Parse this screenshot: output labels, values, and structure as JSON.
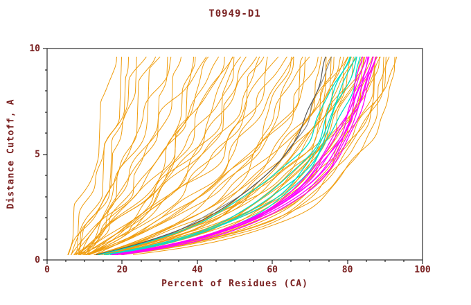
{
  "title": "T0949-D1",
  "axes": {
    "xlabel": "Percent of Residues (CA)",
    "ylabel": "Distance Cutoff, A",
    "xlim": [
      0,
      100
    ],
    "ylim": [
      0,
      10
    ],
    "x_ticks": [
      0,
      20,
      40,
      60,
      80,
      100
    ],
    "y_ticks": [
      0,
      5,
      10
    ],
    "x_minor_step": 5,
    "y_minor_step": 1
  },
  "colors": {
    "background": "#ffffff",
    "frame": "#000000",
    "text": "#7a2121",
    "orange": "#f09d0d",
    "cyan": "#00dfc8",
    "magenta": "#ff00ff",
    "gray": "#8a8a8a",
    "dark_gray": "#555555"
  },
  "chart_data": {
    "type": "line",
    "title": "T0949-D1",
    "xlabel": "Percent of Residues (CA)",
    "ylabel": "Distance Cutoff, A",
    "xlim": [
      0,
      100
    ],
    "ylim": [
      0,
      10
    ],
    "grid": false,
    "legend": "none",
    "description": "CASP-style accuracy plot: each curve shows, for one predicted model, the percent of CA residues (x) fitting under a given distance cutoff in Angstroms (y). Orange = predicted models, magenta/cyan = highlighted best models, gray = reference traces. All curves start near x=5-15 at cutoff ~0.25 and rise monotonically; top ends span ~17% to ~93%.",
    "curve_model": "x(y) = x0 + (xt - x0) * ((y/(y+k)) / (9.6/(9.6+k))) for y in [0.25, 9.6], plus smooth sinusoidal jitter of amplitude a (seed s), monotonically clamped. xt = percent reached at top of plot; k = shape (small k = fast early rise).",
    "groups": [
      {
        "name": "predicted-models-orange",
        "hex": "#f09d0d",
        "width": 1,
        "curves": [
          {
            "x0": 5,
            "xt": 17,
            "k": 30,
            "a": 2.4,
            "s": 1
          },
          {
            "x0": 7,
            "xt": 20,
            "k": 26,
            "a": 2.6,
            "s": 2
          },
          {
            "x0": 6,
            "xt": 22,
            "k": 24,
            "a": 2.8,
            "s": 3
          },
          {
            "x0": 8,
            "xt": 24,
            "k": 22,
            "a": 2.4,
            "s": 4
          },
          {
            "x0": 5,
            "xt": 26,
            "k": 20,
            "a": 3.0,
            "s": 5
          },
          {
            "x0": 7,
            "xt": 28,
            "k": 18,
            "a": 2.6,
            "s": 6
          },
          {
            "x0": 9,
            "xt": 30,
            "k": 17,
            "a": 2.8,
            "s": 7
          },
          {
            "x0": 6,
            "xt": 32,
            "k": 16,
            "a": 2.5,
            "s": 8
          },
          {
            "x0": 8,
            "xt": 34,
            "k": 15,
            "a": 3.0,
            "s": 9
          },
          {
            "x0": 7,
            "xt": 36,
            "k": 14,
            "a": 2.7,
            "s": 10
          },
          {
            "x0": 5,
            "xt": 38,
            "k": 13,
            "a": 3.1,
            "s": 11
          },
          {
            "x0": 9,
            "xt": 40,
            "k": 12,
            "a": 2.6,
            "s": 12
          },
          {
            "x0": 6,
            "xt": 42,
            "k": 11,
            "a": 3.0,
            "s": 13
          },
          {
            "x0": 8,
            "xt": 44,
            "k": 10,
            "a": 2.8,
            "s": 14
          },
          {
            "x0": 7,
            "xt": 46,
            "k": 9.5,
            "a": 3.2,
            "s": 15
          },
          {
            "x0": 5,
            "xt": 48,
            "k": 9,
            "a": 2.6,
            "s": 16
          },
          {
            "x0": 9,
            "xt": 50,
            "k": 8.5,
            "a": 3.0,
            "s": 17
          },
          {
            "x0": 7,
            "xt": 52,
            "k": 8,
            "a": 2.8,
            "s": 18
          },
          {
            "x0": 6,
            "xt": 54,
            "k": 7.5,
            "a": 3.0,
            "s": 19
          },
          {
            "x0": 8,
            "xt": 56,
            "k": 7,
            "a": 2.6,
            "s": 20
          },
          {
            "x0": 7,
            "xt": 58,
            "k": 6.5,
            "a": 3.2,
            "s": 21
          },
          {
            "x0": 5,
            "xt": 60,
            "k": 6,
            "a": 2.8,
            "s": 22
          },
          {
            "x0": 9,
            "xt": 62,
            "k": 5.5,
            "a": 2.6,
            "s": 23
          },
          {
            "x0": 7,
            "xt": 64,
            "k": 5,
            "a": 3.0,
            "s": 24
          },
          {
            "x0": 6,
            "xt": 66,
            "k": 4.5,
            "a": 2.8,
            "s": 25
          },
          {
            "x0": 5,
            "xt": 68,
            "k": 4.2,
            "a": 2.5,
            "s": 26
          },
          {
            "x0": 8,
            "xt": 70,
            "k": 3.8,
            "a": 2.6,
            "s": 27
          },
          {
            "x0": 7,
            "xt": 72,
            "k": 3.5,
            "a": 2.4,
            "s": 28
          },
          {
            "x0": 6,
            "xt": 74,
            "k": 3.2,
            "a": 2.6,
            "s": 29
          },
          {
            "x0": 9,
            "xt": 75,
            "k": 3.0,
            "a": 2.2,
            "s": 30
          },
          {
            "x0": 7,
            "xt": 76,
            "k": 2.9,
            "a": 2.5,
            "s": 31
          },
          {
            "x0": 6,
            "xt": 77,
            "k": 2.8,
            "a": 2.3,
            "s": 32
          },
          {
            "x0": 8,
            "xt": 78,
            "k": 2.7,
            "a": 2.4,
            "s": 33
          },
          {
            "x0": 7,
            "xt": 79,
            "k": 2.6,
            "a": 2.2,
            "s": 34
          },
          {
            "x0": 6,
            "xt": 80,
            "k": 2.5,
            "a": 2.4,
            "s": 35
          },
          {
            "x0": 9,
            "xt": 81,
            "k": 2.4,
            "a": 2.2,
            "s": 36
          },
          {
            "x0": 7,
            "xt": 82,
            "k": 2.3,
            "a": 2.0,
            "s": 37
          },
          {
            "x0": 6,
            "xt": 83,
            "k": 2.2,
            "a": 2.2,
            "s": 38
          },
          {
            "x0": 8,
            "xt": 84,
            "k": 2.1,
            "a": 2.0,
            "s": 39
          },
          {
            "x0": 7,
            "xt": 85,
            "k": 2.0,
            "a": 2.2,
            "s": 40
          },
          {
            "x0": 6,
            "xt": 86,
            "k": 1.9,
            "a": 2.0,
            "s": 41
          },
          {
            "x0": 9,
            "xt": 87,
            "k": 1.8,
            "a": 2.2,
            "s": 42
          },
          {
            "x0": 7,
            "xt": 88,
            "k": 1.8,
            "a": 2.0,
            "s": 43
          },
          {
            "x0": 6,
            "xt": 89,
            "k": 1.7,
            "a": 2.2,
            "s": 44
          },
          {
            "x0": 8,
            "xt": 90,
            "k": 1.7,
            "a": 2.0,
            "s": 45
          },
          {
            "x0": 7,
            "xt": 91,
            "k": 1.6,
            "a": 2.4,
            "s": 46
          },
          {
            "x0": 6,
            "xt": 92,
            "k": 1.6,
            "a": 2.2,
            "s": 47
          },
          {
            "x0": 9,
            "xt": 93,
            "k": 1.5,
            "a": 2.0,
            "s": 48
          },
          {
            "x0": 7,
            "xt": 88,
            "k": 3.0,
            "a": 2.6,
            "s": 49
          },
          {
            "x0": 6,
            "xt": 84,
            "k": 3.4,
            "a": 3.0,
            "s": 50
          },
          {
            "x0": 8,
            "xt": 80,
            "k": 4.0,
            "a": 3.0,
            "s": 51
          },
          {
            "x0": 7,
            "xt": 90,
            "k": 2.2,
            "a": 2.8,
            "s": 52
          },
          {
            "x0": 6,
            "xt": 86,
            "k": 2.8,
            "a": 2.6,
            "s": 53
          },
          {
            "x0": 9,
            "xt": 82,
            "k": 3.6,
            "a": 2.8,
            "s": 54
          },
          {
            "x0": 7,
            "xt": 76,
            "k": 4.5,
            "a": 3.2,
            "s": 55
          },
          {
            "x0": 6,
            "xt": 70,
            "k": 5.5,
            "a": 3.4,
            "s": 56
          },
          {
            "x0": 8,
            "xt": 65,
            "k": 3.0,
            "a": 3.0,
            "s": 57
          },
          {
            "x0": 7,
            "xt": 60,
            "k": 7.0,
            "a": 3.2,
            "s": 58
          },
          {
            "x0": 6,
            "xt": 55,
            "k": 9.0,
            "a": 3.0,
            "s": 59
          },
          {
            "x0": 9,
            "xt": 50,
            "k": 12,
            "a": 2.8,
            "s": 60
          },
          {
            "x0": 7,
            "xt": 45,
            "k": 14,
            "a": 3.0,
            "s": 61
          }
        ]
      },
      {
        "name": "reference-gray",
        "hex": "#8a8a8a",
        "width": 1.2,
        "curves": [
          {
            "x0": 7,
            "xt": 76,
            "k": 3.2,
            "a": 1.2,
            "s": 62
          }
        ]
      },
      {
        "name": "reference-dark-gray",
        "hex": "#555555",
        "width": 1.2,
        "curves": [
          {
            "x0": 6,
            "xt": 75,
            "k": 2.9,
            "a": 1.0,
            "s": 63
          }
        ]
      },
      {
        "name": "highlight-cyan",
        "hex": "#00dfc8",
        "width": 1.3,
        "curves": [
          {
            "x0": 6,
            "xt": 80,
            "k": 2.2,
            "a": 1.3,
            "s": 64
          },
          {
            "x0": 7,
            "xt": 81,
            "k": 2.0,
            "a": 1.2,
            "s": 65
          },
          {
            "x0": 6,
            "xt": 82,
            "k": 2.1,
            "a": 1.3,
            "s": 66
          },
          {
            "x0": 8,
            "xt": 83,
            "k": 1.9,
            "a": 1.2,
            "s": 67
          },
          {
            "x0": 7,
            "xt": 80,
            "k": 3.4,
            "a": 1.6,
            "s": 68
          }
        ]
      },
      {
        "name": "highlight-magenta",
        "hex": "#ff00ff",
        "width": 1.3,
        "curves": [
          {
            "x0": 7,
            "xt": 84,
            "k": 1.9,
            "a": 1.0,
            "s": 69
          },
          {
            "x0": 6,
            "xt": 85,
            "k": 1.8,
            "a": 1.0,
            "s": 70
          },
          {
            "x0": 8,
            "xt": 85,
            "k": 2.0,
            "a": 0.9,
            "s": 71
          },
          {
            "x0": 7,
            "xt": 86,
            "k": 1.8,
            "a": 1.0,
            "s": 72
          },
          {
            "x0": 6,
            "xt": 86,
            "k": 1.9,
            "a": 0.9,
            "s": 73
          },
          {
            "x0": 8,
            "xt": 87,
            "k": 1.7,
            "a": 1.0,
            "s": 74
          },
          {
            "x0": 7,
            "xt": 87,
            "k": 1.9,
            "a": 0.9,
            "s": 75
          },
          {
            "x0": 6,
            "xt": 88,
            "k": 1.8,
            "a": 1.0,
            "s": 76
          }
        ]
      }
    ]
  }
}
